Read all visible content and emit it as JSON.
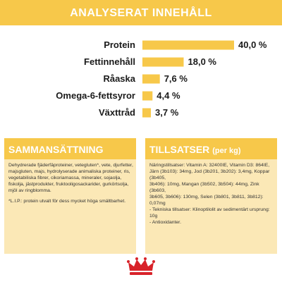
{
  "header": {
    "title": "ANALYSERAT INNEHÅLL"
  },
  "chart_data": {
    "type": "bar",
    "orientation": "horizontal",
    "categories": [
      "Protein",
      "Fettinnehåll",
      "Råaska",
      "Omega-6-fettsyror",
      "Växttråd"
    ],
    "values": [
      40.0,
      18.0,
      7.6,
      4.4,
      3.7
    ],
    "value_labels": [
      "40,0 %",
      "18,0 %",
      "7,6 %",
      "4,4 %",
      "3,7 %"
    ],
    "unit": "%",
    "bar_color": "#f7c84a",
    "grid": false,
    "legend": "none"
  },
  "composition": {
    "title": "SAMMANSÄTTNING",
    "text": "Dehydrerade fjäderfäproteiner, vetegluten*, vete, djurfetter, majsgluten, majs, hydrolyserade animaliska proteiner, ris, vegetabiliska fibrer, cikoriamassa, mineraler, sojaolja, fiskolja, jästprodukter, fruktooligosackarider, gurkörtsolja, mjöl av ringblomma.",
    "note": "*L.I.P.: protein utvalt för dess mycket höga smältbarhet."
  },
  "additives": {
    "title": "TILLSATSER",
    "title_small": "(per kg)",
    "lines": [
      "Näringstillsatser: Vitamin A: 32400IE, Vitamin D3: 864IE,",
      "Järn (3b103): 34mg, Jod (3b201, 3b202): 3,4mg, Koppar (3b405,",
      "3b406): 10mg, Mangan (3b502, 3b504): 44mg, Zink (3b603,",
      "3b605, 3b606): 130mg, Selen (3b801, 3b811, 3b812): 0,07mg",
      "- Tekniska tillsatser: Klinoptilolit av sedimentärt ursprung: 10g",
      "- Antioxidanter."
    ]
  },
  "colors": {
    "accent": "#f7c84a",
    "panel_bg": "#fbe8b6",
    "logo_red": "#d8232a"
  },
  "logo": {
    "icon": "royal-canin-crown-logo"
  }
}
